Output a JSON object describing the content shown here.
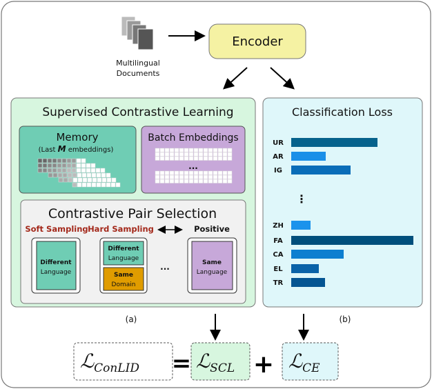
{
  "input": {
    "label_line1": "Multilingual",
    "label_line2": "Documents",
    "icon": "documents-icon"
  },
  "encoder": {
    "label": "Encoder"
  },
  "scl_panel": {
    "title": "Supervised Contrastive Learning",
    "caption": "(a)",
    "memory": {
      "title": "Memory",
      "subtitle_pre": "(Last ",
      "subtitle_var": "M",
      "subtitle_post": " embeddings)"
    },
    "batch": {
      "title": "Batch Embeddings",
      "ellipsis": "..."
    },
    "pair_selection": {
      "title": "Contrastive Pair Selection",
      "soft_label": "Soft Sampling",
      "hard_label": "Hard Sampling",
      "positive_label": "Positive",
      "ellipsis": "...",
      "soft_card": {
        "line1": "Different",
        "line2": "Language"
      },
      "hard_card_top": {
        "line1": "Different",
        "line2": "Language"
      },
      "hard_card_bottom": {
        "line1": "Same",
        "line2": "Domain"
      },
      "positive_card": {
        "line1": "Same",
        "line2": "Language"
      }
    }
  },
  "cls_panel": {
    "title": "Classification Loss",
    "caption": "(b)",
    "ellipsis": "⋮",
    "bars": [
      {
        "label": "UR",
        "value": 125,
        "color": "#06628c"
      },
      {
        "label": "AR",
        "value": 50,
        "color": "#1a8fe8"
      },
      {
        "label": "IG",
        "value": 86,
        "color": "#0a6db8"
      },
      {
        "label": "ZH",
        "value": 28,
        "color": "#1b93ec"
      },
      {
        "label": "FA",
        "value": 177,
        "color": "#004f7c"
      },
      {
        "label": "CA",
        "value": 76,
        "color": "#0d7fd0"
      },
      {
        "label": "EL",
        "value": 40,
        "color": "#0a63a8"
      },
      {
        "label": "TR",
        "value": 49,
        "color": "#045592"
      }
    ]
  },
  "equation": {
    "script_l": "ℒ",
    "total_sub": "ConLID",
    "equals": "=",
    "scl_sub": "SCL",
    "plus": "+",
    "ce_sub": "CE"
  },
  "colors": {
    "scl_bg": "#d7f6df",
    "cls_bg": "#dff7fa",
    "encoder": "#f5f2a3",
    "teal": "#6fcdb4",
    "purple": "#c7a8d9",
    "orange": "#e09c00",
    "red_label": "#a3281a"
  }
}
